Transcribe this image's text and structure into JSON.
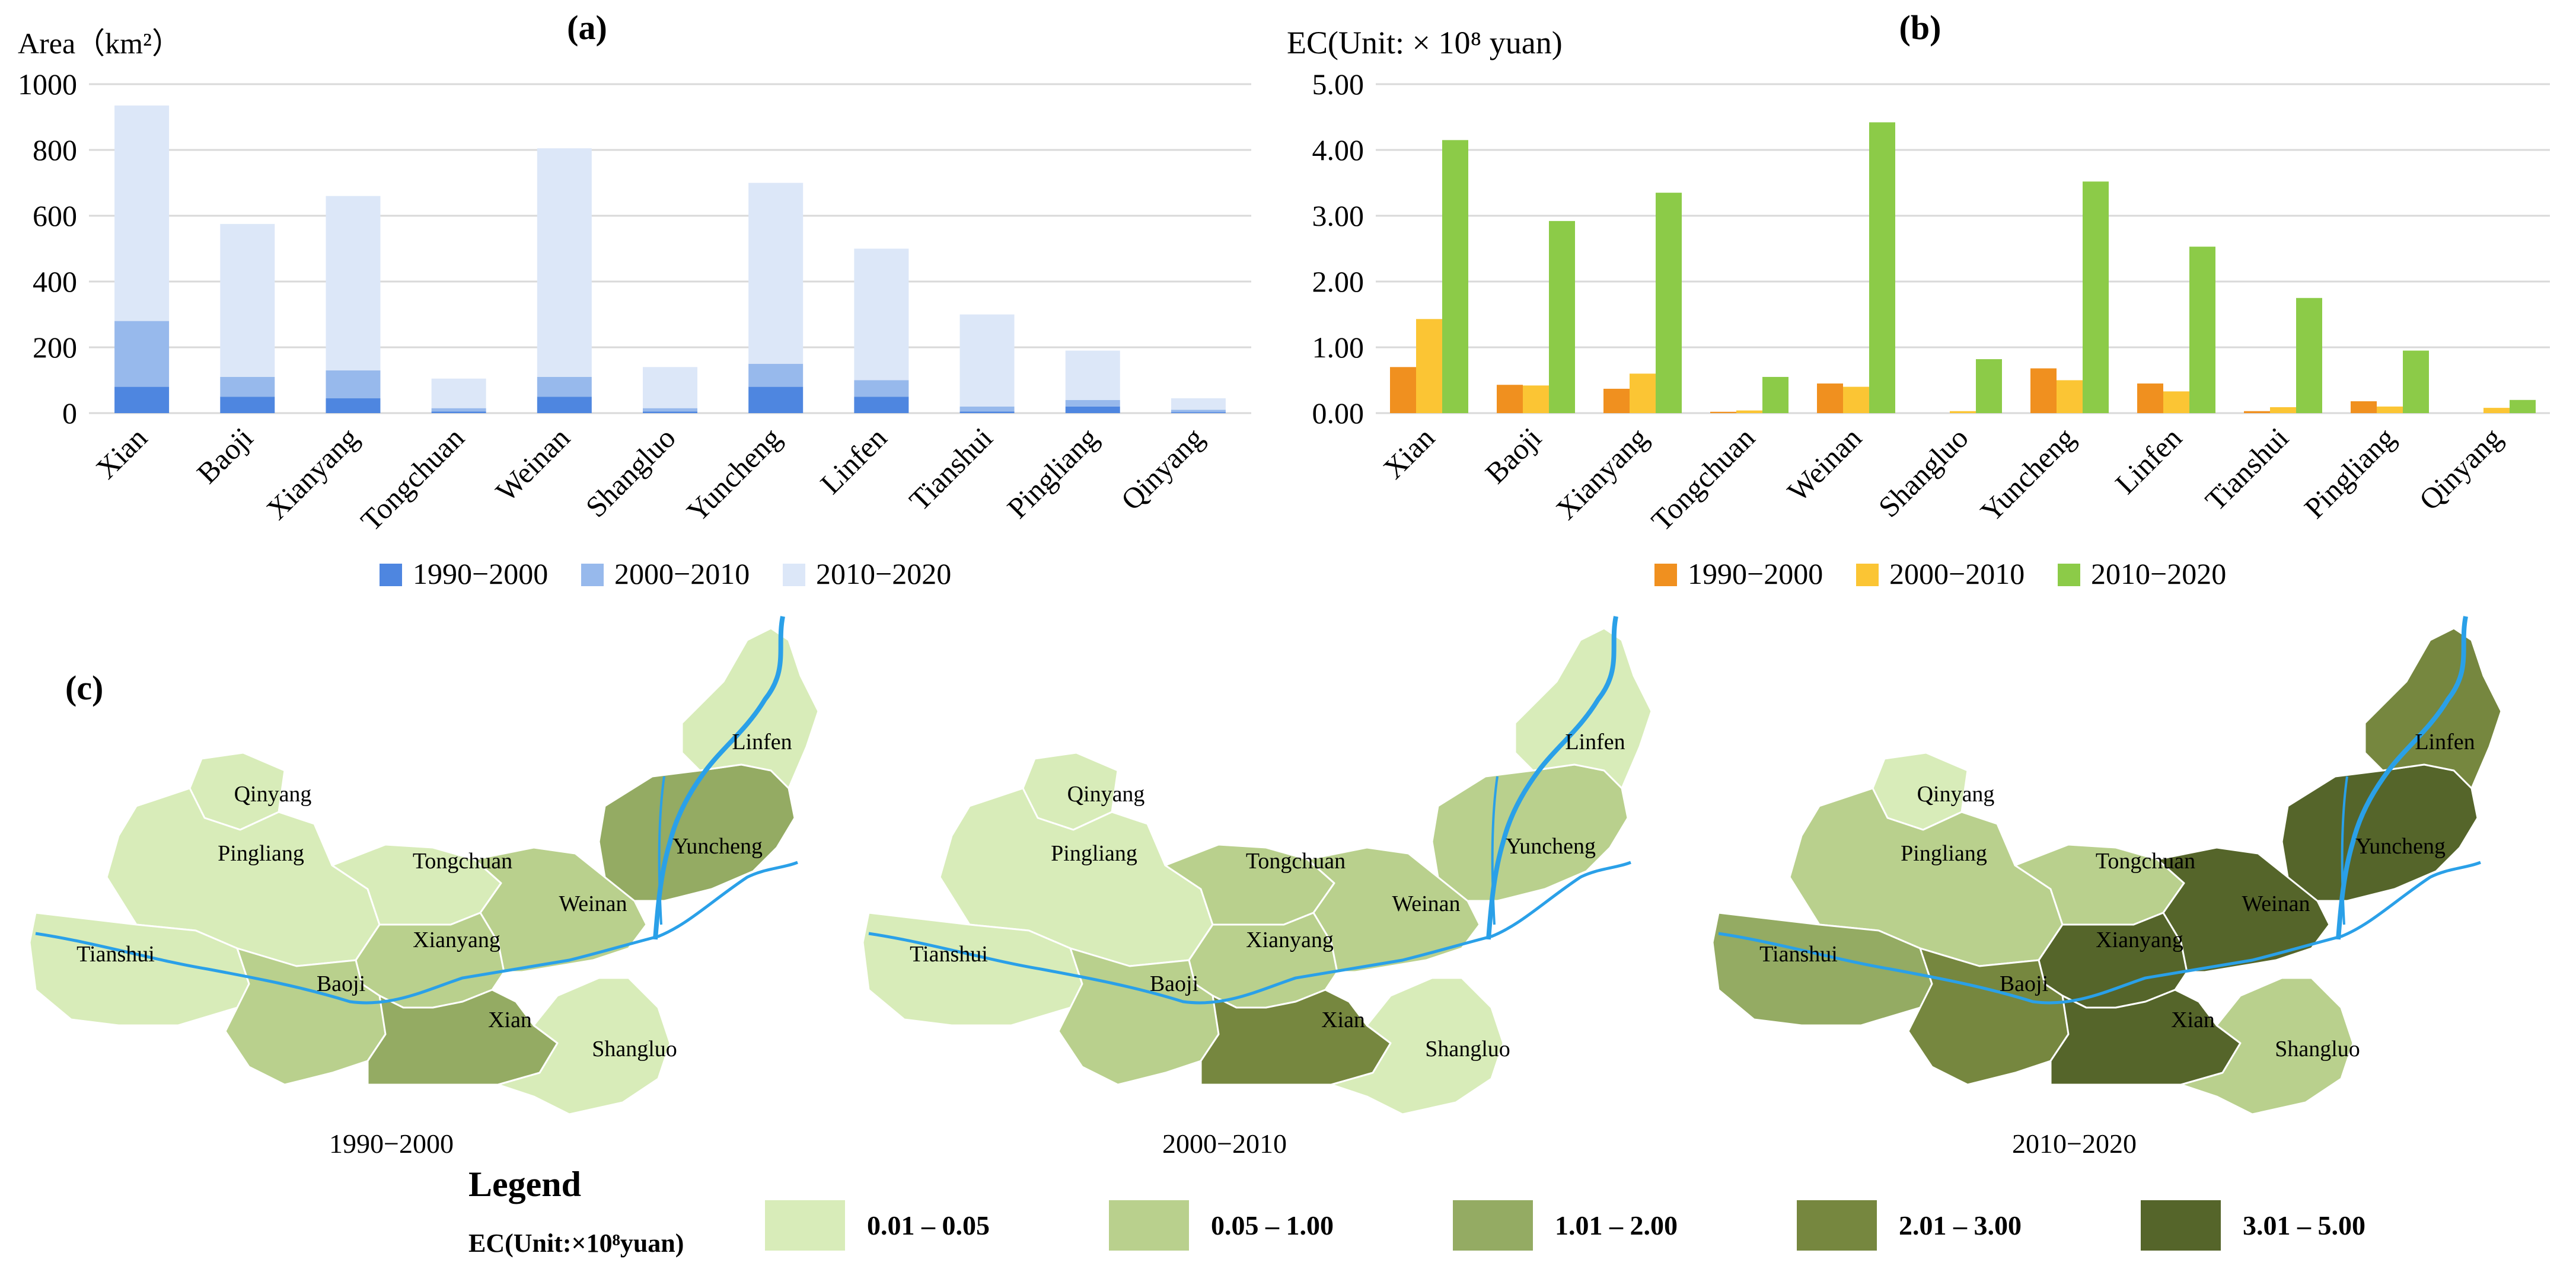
{
  "chart_data": [
    {
      "panel_label": "(a)",
      "type": "bar",
      "stacked": true,
      "ylabel": "Area（km²）",
      "ylim": [
        0,
        1000
      ],
      "yticks": [
        0,
        200,
        400,
        600,
        800,
        1000
      ],
      "grid": true,
      "categories": [
        "Xian",
        "Baoji",
        "Xianyang",
        "Tongchuan",
        "Weinan",
        "Shangluo",
        "Yuncheng",
        "Linfen",
        "Tianshui",
        "Pingliang",
        "Qinyang"
      ],
      "series": [
        {
          "name": "1990−2000",
          "color": "#4e86e0",
          "values": [
            80,
            50,
            45,
            5,
            50,
            5,
            80,
            50,
            5,
            20,
            3
          ]
        },
        {
          "name": "2000−2010",
          "color": "#97b9ec",
          "values": [
            200,
            60,
            85,
            10,
            60,
            10,
            70,
            50,
            15,
            20,
            7
          ]
        },
        {
          "name": "2010−2020",
          "color": "#dce7f8",
          "values": [
            655,
            465,
            530,
            90,
            695,
            125,
            550,
            400,
            280,
            150,
            35
          ]
        }
      ]
    },
    {
      "panel_label": "(b)",
      "type": "bar",
      "stacked": false,
      "ylabel": "EC(Unit: × 10⁸ yuan)",
      "ylim": [
        0,
        5
      ],
      "yticks": [
        "0.00",
        "1.00",
        "2.00",
        "3.00",
        "4.00",
        "5.00"
      ],
      "grid": true,
      "categories": [
        "Xian",
        "Baoji",
        "Xianyang",
        "Tongchuan",
        "Weinan",
        "Shangluo",
        "Yuncheng",
        "Linfen",
        "Tianshui",
        "Pingliang",
        "Qinyang"
      ],
      "series": [
        {
          "name": "1990−2000",
          "color": "#f0901f",
          "values": [
            0.7,
            0.43,
            0.37,
            0.02,
            0.45,
            0.0,
            0.68,
            0.45,
            0.03,
            0.18,
            0.0
          ]
        },
        {
          "name": "2000−2010",
          "color": "#fbc534",
          "values": [
            1.43,
            0.42,
            0.6,
            0.04,
            0.4,
            0.03,
            0.5,
            0.33,
            0.09,
            0.1,
            0.08
          ]
        },
        {
          "name": "2010−2020",
          "color": "#8ccb48",
          "values": [
            4.15,
            2.92,
            3.35,
            0.55,
            4.42,
            0.82,
            3.52,
            2.53,
            1.75,
            0.95,
            0.2
          ]
        }
      ]
    },
    {
      "panel_label": "(c)",
      "type": "choropleth",
      "legend_title": "Legend",
      "legend_subtitle": "EC(Unit:×10⁸yuan)",
      "classes": [
        {
          "label": "0.01 – 0.05",
          "color": "#d8ecb9"
        },
        {
          "label": "0.05 – 1.00",
          "color": "#b9d08d"
        },
        {
          "label": "1.01 – 2.00",
          "color": "#94ab63"
        },
        {
          "label": "2.01 – 3.00",
          "color": "#76873f"
        },
        {
          "label": "3.01 – 5.00",
          "color": "#55652a"
        }
      ],
      "maps": [
        {
          "title": "1990−2000",
          "region_class": {
            "Xian": 2,
            "Baoji": 1,
            "Xianyang": 1,
            "Tongchuan": 0,
            "Weinan": 1,
            "Shangluo": 0,
            "Yuncheng": 2,
            "Linfen": 0,
            "Tianshui": 0,
            "Pingliang": 0,
            "Qinyang": 0
          }
        },
        {
          "title": "2000−2010",
          "region_class": {
            "Xian": 3,
            "Baoji": 1,
            "Xianyang": 1,
            "Tongchuan": 1,
            "Weinan": 1,
            "Shangluo": 0,
            "Yuncheng": 1,
            "Linfen": 0,
            "Tianshui": 0,
            "Pingliang": 0,
            "Qinyang": 0
          }
        },
        {
          "title": "2010−2020",
          "region_class": {
            "Xian": 4,
            "Baoji": 3,
            "Xianyang": 4,
            "Tongchuan": 1,
            "Weinan": 4,
            "Shangluo": 1,
            "Yuncheng": 4,
            "Linfen": 3,
            "Tianshui": 2,
            "Pingliang": 1,
            "Qinyang": 0
          }
        }
      ]
    }
  ]
}
